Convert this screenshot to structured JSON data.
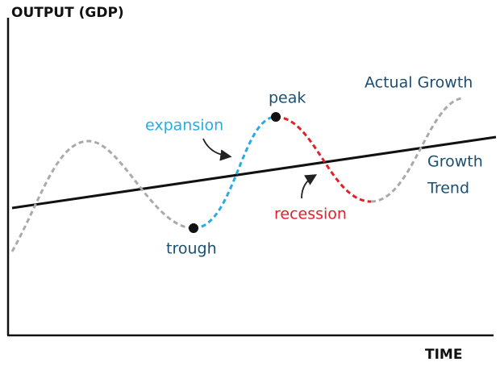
{
  "axes": {
    "y_label": "OUTPUT (GDP)",
    "x_label": "TIME"
  },
  "labels": {
    "actual": "Actual Growth",
    "trend": [
      "Growth",
      "Trend"
    ],
    "expansion": "expansion",
    "peak": "peak",
    "recession": "recession",
    "trough": "trough"
  }
}
